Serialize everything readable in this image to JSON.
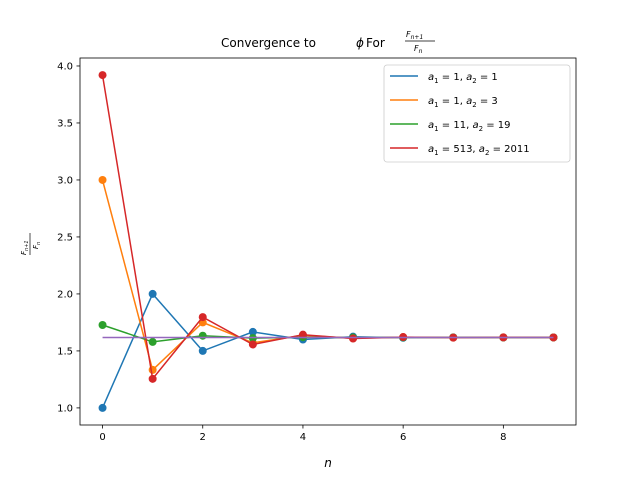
{
  "chart_data": {
    "type": "line",
    "title": {
      "prefix": "Convergence to ",
      "phi": "ϕ",
      "mid": " For ",
      "frac_num": "F",
      "frac_num_sub": "n+1",
      "frac_den": "F",
      "frac_den_sub": "n"
    },
    "xlabel": "n",
    "ylabel": {
      "num": "F",
      "num_sub": "n+1",
      "den": "F",
      "den_sub": "n"
    },
    "xlim": [
      -0.45,
      9.45
    ],
    "ylim": [
      0.85,
      4.07
    ],
    "xticks": [
      0,
      2,
      4,
      6,
      8
    ],
    "xtick_labels": [
      "0",
      "2",
      "4",
      "6",
      "8"
    ],
    "yticks": [
      1.0,
      1.5,
      2.0,
      2.5,
      3.0,
      3.5,
      4.0
    ],
    "ytick_labels": [
      "1.0",
      "1.5",
      "2.0",
      "2.5",
      "3.0",
      "3.5",
      "4.0"
    ],
    "x": [
      0,
      1,
      2,
      3,
      4,
      5,
      6,
      7,
      8,
      9
    ],
    "legend_position": "upper right",
    "series": [
      {
        "name": "a1=1, a2=1",
        "legend": [
          "a",
          "1",
          " = 1, ",
          "a",
          "2",
          " = 1"
        ],
        "color": "#1f77b4",
        "values": [
          1.0,
          2.0,
          1.5,
          1.6667,
          1.6,
          1.625,
          1.6154,
          1.619,
          1.6176,
          1.6182
        ]
      },
      {
        "name": "a1=1, a2=3",
        "legend": [
          "a",
          "1",
          " = 1, ",
          "a",
          "2",
          " = 3"
        ],
        "color": "#ff7f0e",
        "values": [
          3.0,
          1.3333,
          1.75,
          1.5714,
          1.6364,
          1.6111,
          1.6207,
          1.617,
          1.6184,
          1.6179
        ]
      },
      {
        "name": "a1=11, a2=19",
        "legend": [
          "a",
          "1",
          " = 11, ",
          "a",
          "2",
          " = 19"
        ],
        "color": "#2ca02c",
        "values": [
          1.7273,
          1.5789,
          1.6333,
          1.6122,
          1.6203,
          1.6172,
          1.6184,
          1.6179,
          1.6181,
          1.618
        ]
      },
      {
        "name": "a1=513, a2=2011",
        "legend": [
          "a",
          "1",
          " = 513, ",
          "a",
          "2",
          " = 2011"
        ],
        "color": "#d62728",
        "values": [
          3.9201,
          1.2551,
          1.7968,
          1.5565,
          1.6425,
          1.6088,
          1.6216,
          1.6167,
          1.6186,
          1.6179
        ]
      }
    ],
    "reference_line": {
      "value": 1.618034,
      "color": "#9467bd"
    }
  }
}
